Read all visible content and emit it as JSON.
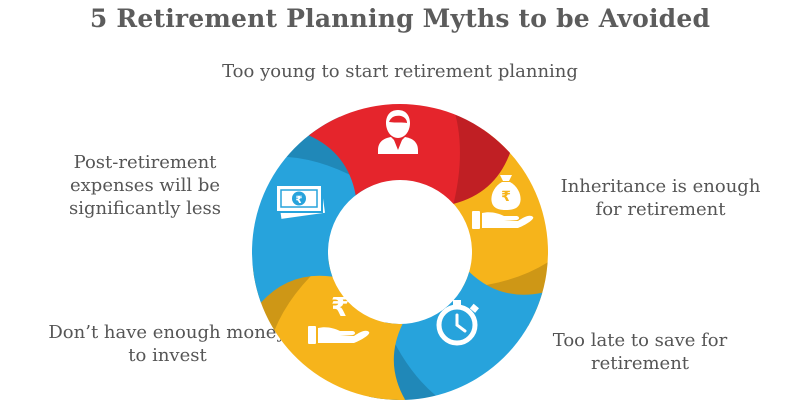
{
  "title": "5 Retirement Planning Myths to be Avoided",
  "myths": [
    {
      "text": "Too young to start retirement planning",
      "color": "#e5252c",
      "icon": "person-icon"
    },
    {
      "text": "Inheritance is enough for retirement",
      "color": "#f6b41b",
      "icon": "money-bag-hand-icon"
    },
    {
      "text": "Too late to save for retirement",
      "color": "#27a3dc",
      "icon": "stopwatch-icon"
    },
    {
      "text": "Don’t have enough money to invest",
      "color": "#f6b41b",
      "icon": "rupee-hand-icon"
    },
    {
      "text": "Post-retirement expenses will be significantly less",
      "color": "#27a3dc",
      "icon": "rupee-banknote-icon"
    }
  ]
}
